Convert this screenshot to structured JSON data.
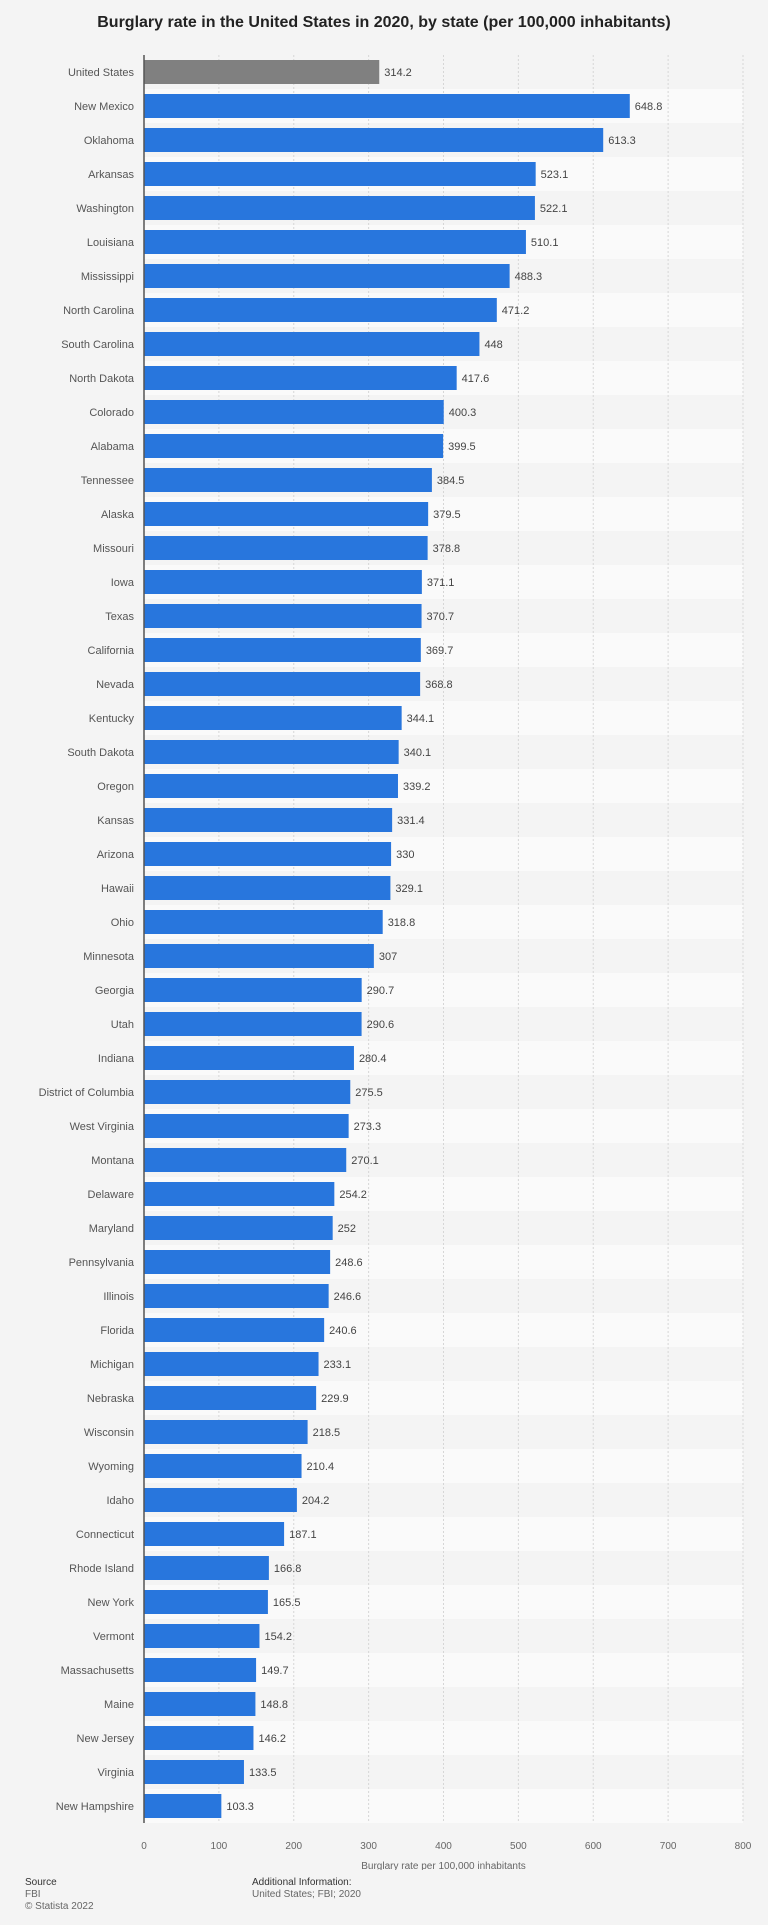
{
  "chart_data": {
    "type": "bar",
    "orientation": "horizontal",
    "title": "Burglary rate in the United States in 2020, by state (per 100,000 inhabitants)",
    "xlabel": "Burglary rate per 100,000 inhabitants",
    "ylabel": "",
    "xlim": [
      0,
      800
    ],
    "ticks": [
      "0",
      "100",
      "200",
      "300",
      "400",
      "500",
      "600",
      "700",
      "800"
    ],
    "grid": true,
    "colors": {
      "bar": "#2876dd",
      "highlight": "#808080"
    },
    "highlight_category": "United States",
    "categories": [
      "United States",
      "New Mexico",
      "Oklahoma",
      "Arkansas",
      "Washington",
      "Louisiana",
      "Mississippi",
      "North Carolina",
      "South Carolina",
      "North Dakota",
      "Colorado",
      "Alabama",
      "Tennessee",
      "Alaska",
      "Missouri",
      "Iowa",
      "Texas",
      "California",
      "Nevada",
      "Kentucky",
      "South Dakota",
      "Oregon",
      "Kansas",
      "Arizona",
      "Hawaii",
      "Ohio",
      "Minnesota",
      "Georgia",
      "Utah",
      "Indiana",
      "District of Columbia",
      "West Virginia",
      "Montana",
      "Delaware",
      "Maryland",
      "Pennsylvania",
      "Illinois",
      "Florida",
      "Michigan",
      "Nebraska",
      "Wisconsin",
      "Wyoming",
      "Idaho",
      "Connecticut",
      "Rhode Island",
      "New York",
      "Vermont",
      "Massachusetts",
      "Maine",
      "New Jersey",
      "Virginia",
      "New Hampshire"
    ],
    "values": [
      314.2,
      648.8,
      613.3,
      523.1,
      522.1,
      510.1,
      488.3,
      471.2,
      448,
      417.6,
      400.3,
      399.5,
      384.5,
      379.5,
      378.8,
      371.1,
      370.7,
      369.7,
      368.8,
      344.1,
      340.1,
      339.2,
      331.4,
      330,
      329.1,
      318.8,
      307,
      290.7,
      290.6,
      280.4,
      275.5,
      273.3,
      270.1,
      254.2,
      252,
      248.6,
      246.6,
      240.6,
      233.1,
      229.9,
      218.5,
      210.4,
      204.2,
      187.1,
      166.8,
      165.5,
      154.2,
      149.7,
      148.8,
      146.2,
      133.5,
      103.3
    ],
    "value_labels": [
      "314.2",
      "648.8",
      "613.3",
      "523.1",
      "522.1",
      "510.1",
      "488.3",
      "471.2",
      "448",
      "417.6",
      "400.3",
      "399.5",
      "384.5",
      "379.5",
      "378.8",
      "371.1",
      "370.7",
      "369.7",
      "368.8",
      "344.1",
      "340.1",
      "339.2",
      "331.4",
      "330",
      "329.1",
      "318.8",
      "307",
      "290.7",
      "290.6",
      "280.4",
      "275.5",
      "273.3",
      "270.1",
      "254.2",
      "252",
      "248.6",
      "246.6",
      "240.6",
      "233.1",
      "229.9",
      "218.5",
      "210.4",
      "204.2",
      "187.1",
      "166.8",
      "165.5",
      "154.2",
      "149.7",
      "148.8",
      "146.2",
      "133.5",
      "103.3"
    ]
  },
  "footer": {
    "source_label": "Source",
    "source": "FBI",
    "copyright": "© Statista 2022",
    "additional_label": "Additional Information:",
    "additional": "United States; FBI; 2020"
  }
}
